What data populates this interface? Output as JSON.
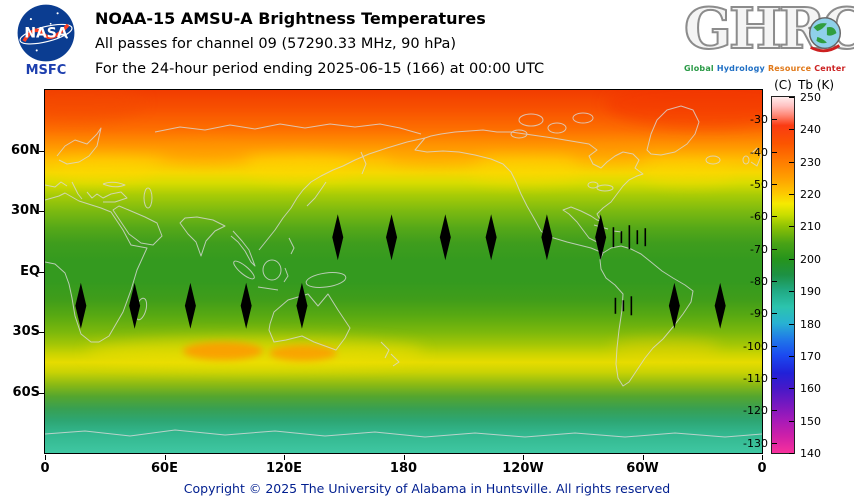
{
  "header": {
    "nasa_logo_text": "NASA",
    "msfc_label": "MSFC",
    "title": "NOAA-15 AMSU-A Brightness Temperatures",
    "subtitle": "All passes for channel 09 (57290.33 MHz, 90 hPa)",
    "period_line": "For the 24-hour period ending 2025-06-15 (166) at 00:00 UTC",
    "ghrc_letters": "GHRC",
    "ghrc_words": [
      "Global",
      "Hydrology",
      "Resource",
      "Center"
    ]
  },
  "map_axes": {
    "lat_ticks": [
      {
        "label": "60N",
        "lat": 60
      },
      {
        "label": "30N",
        "lat": 30
      },
      {
        "label": "EQ",
        "lat": 0
      },
      {
        "label": "30S",
        "lat": -30
      },
      {
        "label": "60S",
        "lat": -60
      }
    ],
    "lon_ticks": [
      {
        "label": "0",
        "lon": 0
      },
      {
        "label": "60E",
        "lon": 60
      },
      {
        "label": "120E",
        "lon": 120
      },
      {
        "label": "180",
        "lon": 180
      },
      {
        "label": "120W",
        "lon": 240
      },
      {
        "label": "60W",
        "lon": 300
      },
      {
        "label": "0",
        "lon": 360
      }
    ]
  },
  "colorbar": {
    "unit_celsius": "(C)",
    "unit_kelvin": "Tb (K)",
    "kelvin_min": 140,
    "kelvin_max": 250,
    "kelvin_ticks": [
      250,
      240,
      230,
      220,
      210,
      200,
      190,
      180,
      170,
      160,
      150,
      140
    ],
    "celsius_ticks": [
      -30,
      -40,
      -50,
      -60,
      -70,
      -80,
      -90,
      -100,
      -110,
      -120,
      -130
    ]
  },
  "footer": {
    "copyright": "Copyright © 2025 The University of Alabama in Huntsville. All rights reserved"
  },
  "colors": {
    "nasa_blue": "#0b3d91",
    "nasa_red": "#fc3d21",
    "msfc_blue": "#1d3fae",
    "footer_text": "#001e8f"
  },
  "chart_data": {
    "type": "heatmap",
    "title": "NOAA-15 AMSU-A Brightness Temperatures",
    "satellite": "NOAA-15",
    "instrument": "AMSU-A",
    "channel": "09",
    "frequency_MHz": 57290.33,
    "pressure_level_hPa": 90,
    "period_end": "2025-06-15 (166) at 00:00 UTC",
    "units": "K",
    "colorbar_range_K": [
      140,
      250
    ],
    "lon_range_deg": [
      0,
      360
    ],
    "lat_range_deg": [
      -90,
      90
    ],
    "zonal_mean_profile": [
      {
        "lat": 85,
        "Tb_K": 242
      },
      {
        "lat": 75,
        "Tb_K": 238
      },
      {
        "lat": 65,
        "Tb_K": 231
      },
      {
        "lat": 55,
        "Tb_K": 224
      },
      {
        "lat": 45,
        "Tb_K": 218
      },
      {
        "lat": 35,
        "Tb_K": 213
      },
      {
        "lat": 25,
        "Tb_K": 210
      },
      {
        "lat": 10,
        "Tb_K": 207
      },
      {
        "lat": 0,
        "Tb_K": 207
      },
      {
        "lat": -10,
        "Tb_K": 208
      },
      {
        "lat": -25,
        "Tb_K": 212
      },
      {
        "lat": -35,
        "Tb_K": 219
      },
      {
        "lat": -45,
        "Tb_K": 227
      },
      {
        "lat": -55,
        "Tb_K": 218
      },
      {
        "lat": -65,
        "Tb_K": 207
      },
      {
        "lat": -75,
        "Tb_K": 198
      },
      {
        "lat": -85,
        "Tb_K": 193
      }
    ],
    "warm_anomalies": [
      {
        "lat": -45,
        "lon": 90,
        "Tb_K": 232
      },
      {
        "lat": -45,
        "lon": 128,
        "Tb_K": 231
      }
    ],
    "data_gap_diamonds": {
      "north_row_lat": 17,
      "north_row_lons": [
        147,
        174,
        201,
        224,
        252,
        279
      ],
      "north_streak_lons": [
        285,
        289,
        293,
        297,
        301
      ],
      "south_row_lat": -17,
      "south_row_lons": [
        18,
        45,
        73,
        101,
        129,
        316,
        339
      ],
      "south_streak_lons": [
        286,
        290,
        294
      ]
    }
  }
}
